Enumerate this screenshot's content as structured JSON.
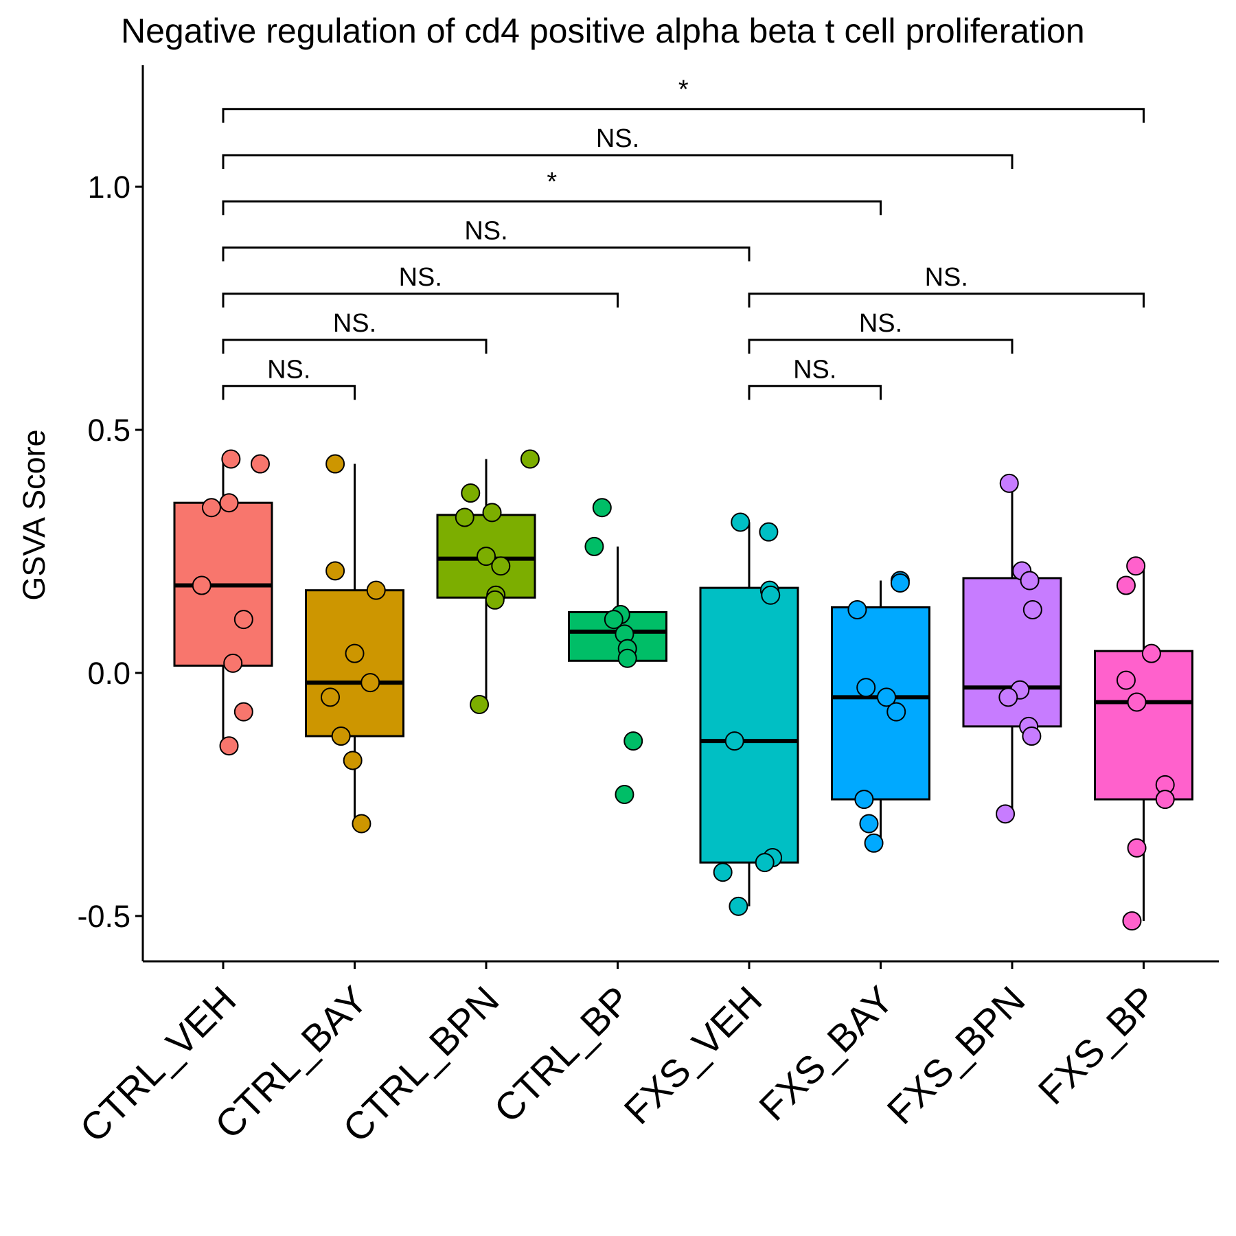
{
  "chart_data": {
    "type": "box",
    "title": "Negative regulation of cd4 positive alpha beta t cell proliferation",
    "xlabel": "",
    "ylabel": "GSVA Score",
    "ylim": [
      -0.59,
      1.24
    ],
    "yticks": [
      "-0.5",
      "0.0",
      "0.5",
      "1.0"
    ],
    "yticks_values": [
      -0.5,
      0.0,
      0.5,
      1.0
    ],
    "grid": false,
    "legend": "none",
    "categories": [
      "CTRL_VEH",
      "CTRL_BAY",
      "CTRL_BPN",
      "CTRL_BP",
      "FXS_VEH",
      "FXS_BAY",
      "FXS_BPN",
      "FXS_BP"
    ],
    "series": [
      {
        "category": "CTRL_VEH",
        "color": "#F8766D",
        "box": {
          "whisker_low": -0.15,
          "q1": 0.015,
          "median": 0.18,
          "q3": 0.35,
          "whisker_high": 0.44
        },
        "points": [
          0.44,
          0.43,
          0.35,
          0.34,
          0.18,
          0.11,
          0.02,
          -0.08,
          -0.15
        ]
      },
      {
        "category": "CTRL_BAY",
        "color": "#CD9600",
        "box": {
          "whisker_low": -0.31,
          "q1": -0.13,
          "median": -0.02,
          "q3": 0.17,
          "whisker_high": 0.43
        },
        "points": [
          0.43,
          0.21,
          0.17,
          0.04,
          -0.02,
          -0.05,
          -0.13,
          -0.18,
          -0.31
        ]
      },
      {
        "category": "CTRL_BPN",
        "color": "#7CAE00",
        "box": {
          "whisker_low": -0.065,
          "q1": 0.155,
          "median": 0.235,
          "q3": 0.325,
          "whisker_high": 0.44
        },
        "points": [
          0.44,
          0.37,
          0.33,
          0.32,
          0.24,
          0.22,
          0.16,
          0.15,
          -0.065
        ]
      },
      {
        "category": "CTRL_BP",
        "color": "#00BE67",
        "box": {
          "whisker_low": 0.025,
          "q1": 0.025,
          "median": 0.085,
          "q3": 0.125,
          "whisker_high": 0.26
        },
        "points": [
          0.34,
          0.26,
          0.12,
          0.11,
          0.08,
          0.05,
          0.03,
          -0.14,
          -0.25
        ]
      },
      {
        "category": "FXS_VEH",
        "color": "#00BFC4",
        "box": {
          "whisker_low": -0.48,
          "q1": -0.39,
          "median": -0.14,
          "q3": 0.175,
          "whisker_high": 0.31
        },
        "points": [
          0.31,
          0.29,
          0.17,
          0.16,
          -0.14,
          -0.38,
          -0.39,
          -0.41,
          -0.48
        ]
      },
      {
        "category": "FXS_BAY",
        "color": "#00A9FF",
        "box": {
          "whisker_low": -0.35,
          "q1": -0.26,
          "median": -0.05,
          "q3": 0.135,
          "whisker_high": 0.19
        },
        "points": [
          0.19,
          0.185,
          0.13,
          -0.03,
          -0.05,
          -0.08,
          -0.26,
          -0.31,
          -0.35
        ]
      },
      {
        "category": "FXS_BPN",
        "color": "#C77CFF",
        "box": {
          "whisker_low": -0.29,
          "q1": -0.11,
          "median": -0.03,
          "q3": 0.195,
          "whisker_high": 0.39
        },
        "points": [
          0.39,
          0.21,
          0.19,
          0.13,
          -0.035,
          -0.05,
          -0.11,
          -0.13,
          -0.29
        ]
      },
      {
        "category": "FXS_BP",
        "color": "#FF61CC",
        "box": {
          "whisker_low": -0.51,
          "q1": -0.26,
          "median": -0.06,
          "q3": 0.045,
          "whisker_high": 0.22
        },
        "points": [
          0.22,
          0.18,
          0.04,
          -0.015,
          -0.06,
          -0.23,
          -0.26,
          -0.36,
          -0.51
        ]
      }
    ],
    "comparisons": [
      {
        "from": "CTRL_VEH",
        "to": "FXS_BP",
        "label": "*",
        "y": 1.16
      },
      {
        "from": "CTRL_VEH",
        "to": "FXS_BPN",
        "label": "NS.",
        "y": 1.065
      },
      {
        "from": "CTRL_VEH",
        "to": "FXS_BAY",
        "label": "*",
        "y": 0.97
      },
      {
        "from": "CTRL_VEH",
        "to": "FXS_VEH",
        "label": "NS.",
        "y": 0.875
      },
      {
        "from": "CTRL_VEH",
        "to": "CTRL_BP",
        "label": "NS.",
        "y": 0.78
      },
      {
        "from": "CTRL_VEH",
        "to": "CTRL_BPN",
        "label": "NS.",
        "y": 0.685
      },
      {
        "from": "CTRL_VEH",
        "to": "CTRL_BAY",
        "label": "NS.",
        "y": 0.59
      },
      {
        "from": "FXS_VEH",
        "to": "FXS_BP",
        "label": "NS.",
        "y": 0.78
      },
      {
        "from": "FXS_VEH",
        "to": "FXS_BPN",
        "label": "NS.",
        "y": 0.685
      },
      {
        "from": "FXS_VEH",
        "to": "FXS_BAY",
        "label": "NS.",
        "y": 0.59
      }
    ]
  }
}
